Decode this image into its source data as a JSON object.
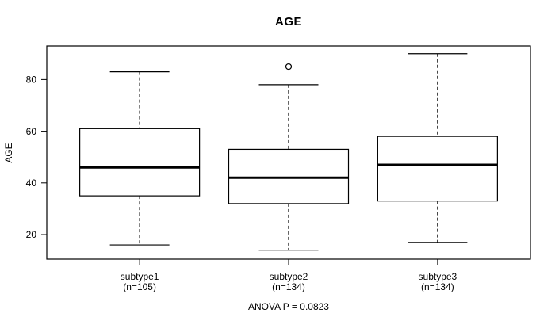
{
  "chart_data": {
    "type": "boxplot",
    "title": "AGE",
    "ylabel": "AGE",
    "annotation": "ANOVA P = 0.0823",
    "yticks": [
      20,
      40,
      60,
      80
    ],
    "ylim": [
      10.5,
      93
    ],
    "grid": false,
    "groups": [
      {
        "label": "subtype1",
        "sublabel": "(n=105)",
        "n": 105,
        "whisker_low": 16,
        "q1": 35,
        "median": 46,
        "q3": 61,
        "whisker_high": 83,
        "outliers": []
      },
      {
        "label": "subtype2",
        "sublabel": "(n=134)",
        "n": 134,
        "whisker_low": 14,
        "q1": 32,
        "median": 42,
        "q3": 53,
        "whisker_high": 78,
        "outliers": [
          85
        ]
      },
      {
        "label": "subtype3",
        "sublabel": "(n=134)",
        "n": 134,
        "whisker_low": 17,
        "q1": 33,
        "median": 47,
        "q3": 58,
        "whisker_high": 90,
        "outliers": []
      }
    ],
    "colors": {
      "line": "#000000",
      "median": "#000000",
      "box_fill": "#ffffff",
      "background": "#ffffff"
    }
  }
}
